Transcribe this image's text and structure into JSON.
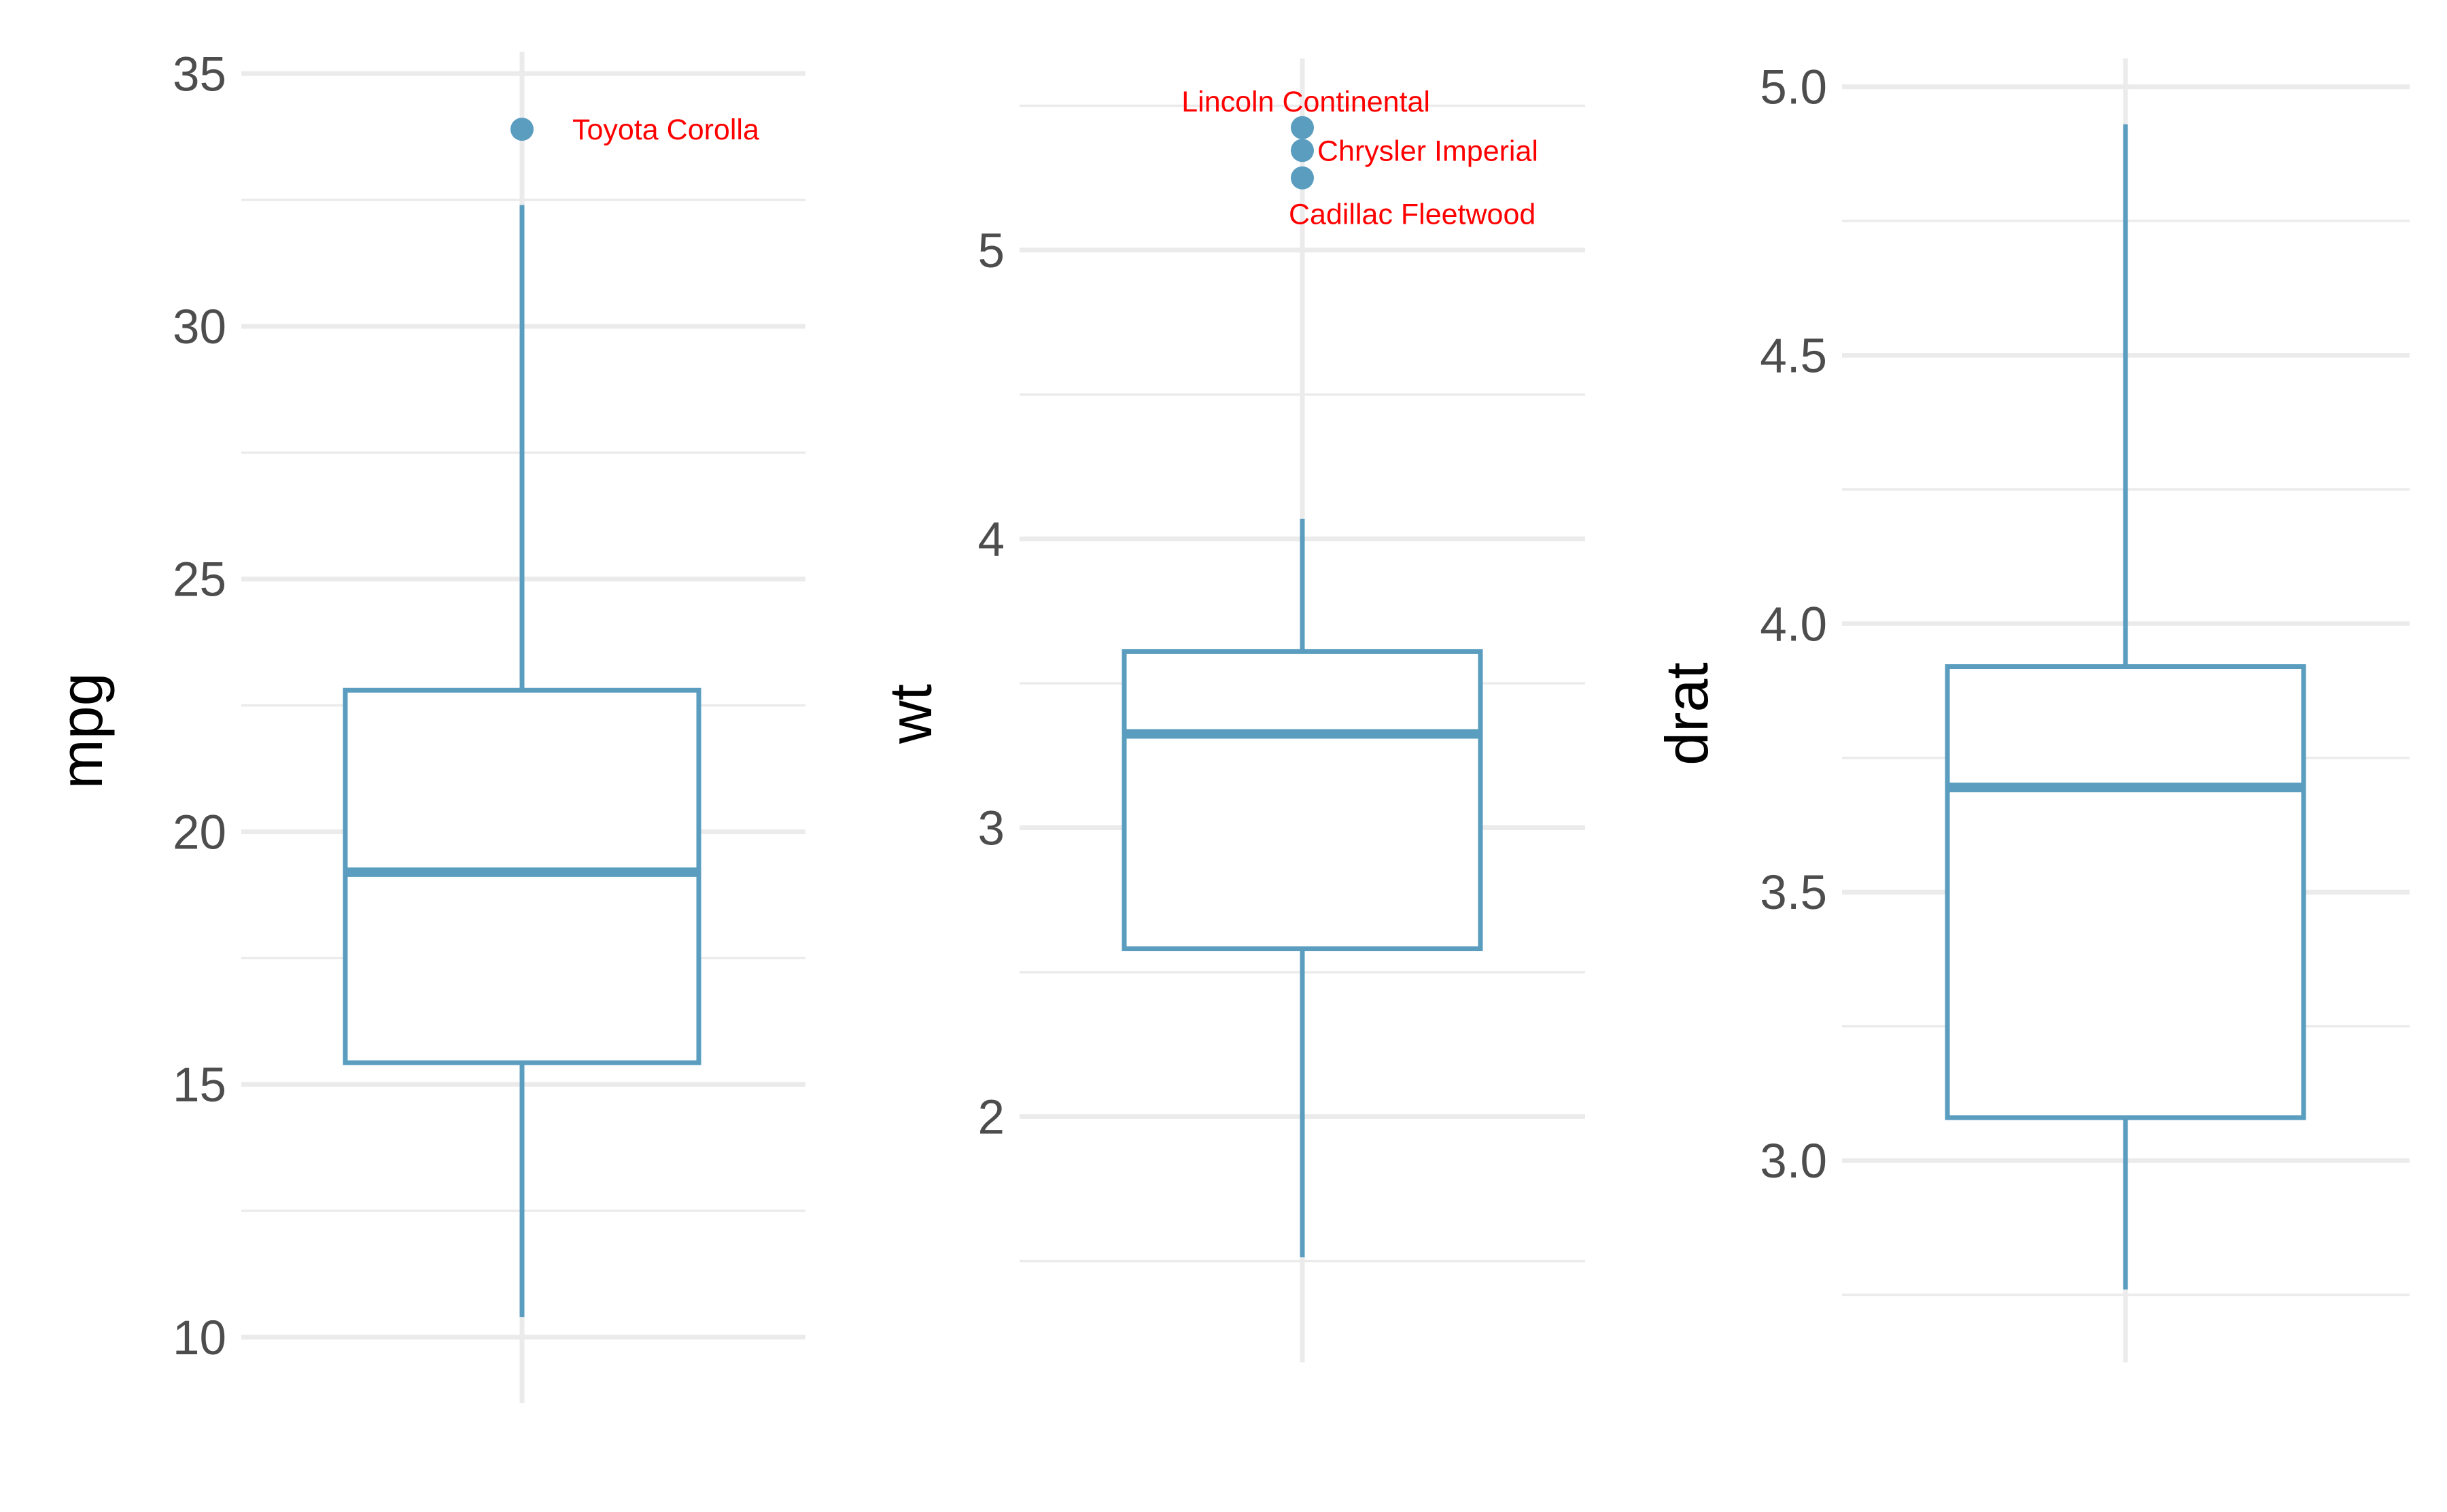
{
  "colors": {
    "box": "#5a9dbf",
    "outlier_label": "#ff0000",
    "grid": "#ebebeb",
    "tick_text": "#4d4d4d",
    "title_text": "#000000",
    "background": "#ffffff"
  },
  "chart_data": [
    {
      "type": "box",
      "ylabel": "mpg",
      "ylim": [
        9.5,
        35.3
      ],
      "major_ticks": [
        10,
        15,
        20,
        25,
        30,
        35
      ],
      "tick_labels": [
        "10",
        "15",
        "20",
        "25",
        "30",
        "35"
      ],
      "minor_ticks": [
        12.5,
        17.5,
        22.5,
        27.5,
        32.5
      ],
      "box": {
        "lower_whisker": 10.4,
        "q1": 15.43,
        "median": 19.2,
        "q3": 22.8,
        "upper_whisker": 32.4
      },
      "outliers": [
        {
          "value": 33.9,
          "label": "Toyota Corolla"
        }
      ]
    },
    {
      "type": "box",
      "ylabel": "wt",
      "ylim": [
        1.29,
        5.64
      ],
      "major_ticks": [
        2,
        3,
        4,
        5
      ],
      "tick_labels": [
        "2",
        "3",
        "4",
        "5"
      ],
      "minor_ticks": [
        1.5,
        2.5,
        3.5,
        4.5,
        5.5
      ],
      "box": {
        "lower_whisker": 1.513,
        "q1": 2.581,
        "median": 3.325,
        "q3": 3.61,
        "upper_whisker": 4.07
      },
      "outliers": [
        {
          "value": 5.424,
          "label": "Lincoln Continental"
        },
        {
          "value": 5.345,
          "label": "Chrysler Imperial"
        },
        {
          "value": 5.25,
          "label": "Cadillac Fleetwood"
        }
      ]
    },
    {
      "type": "box",
      "ylabel": "drat",
      "ylim": [
        2.7,
        5.04
      ],
      "major_ticks": [
        3.0,
        3.5,
        4.0,
        4.5,
        5.0
      ],
      "tick_labels": [
        "3.0",
        "3.5",
        "4.0",
        "4.5",
        "5.0"
      ],
      "minor_ticks": [
        2.75,
        3.25,
        3.75,
        4.25,
        4.75
      ],
      "box": {
        "lower_whisker": 2.76,
        "q1": 3.08,
        "median": 3.695,
        "q3": 3.92,
        "upper_whisker": 4.93
      },
      "outliers": []
    }
  ]
}
